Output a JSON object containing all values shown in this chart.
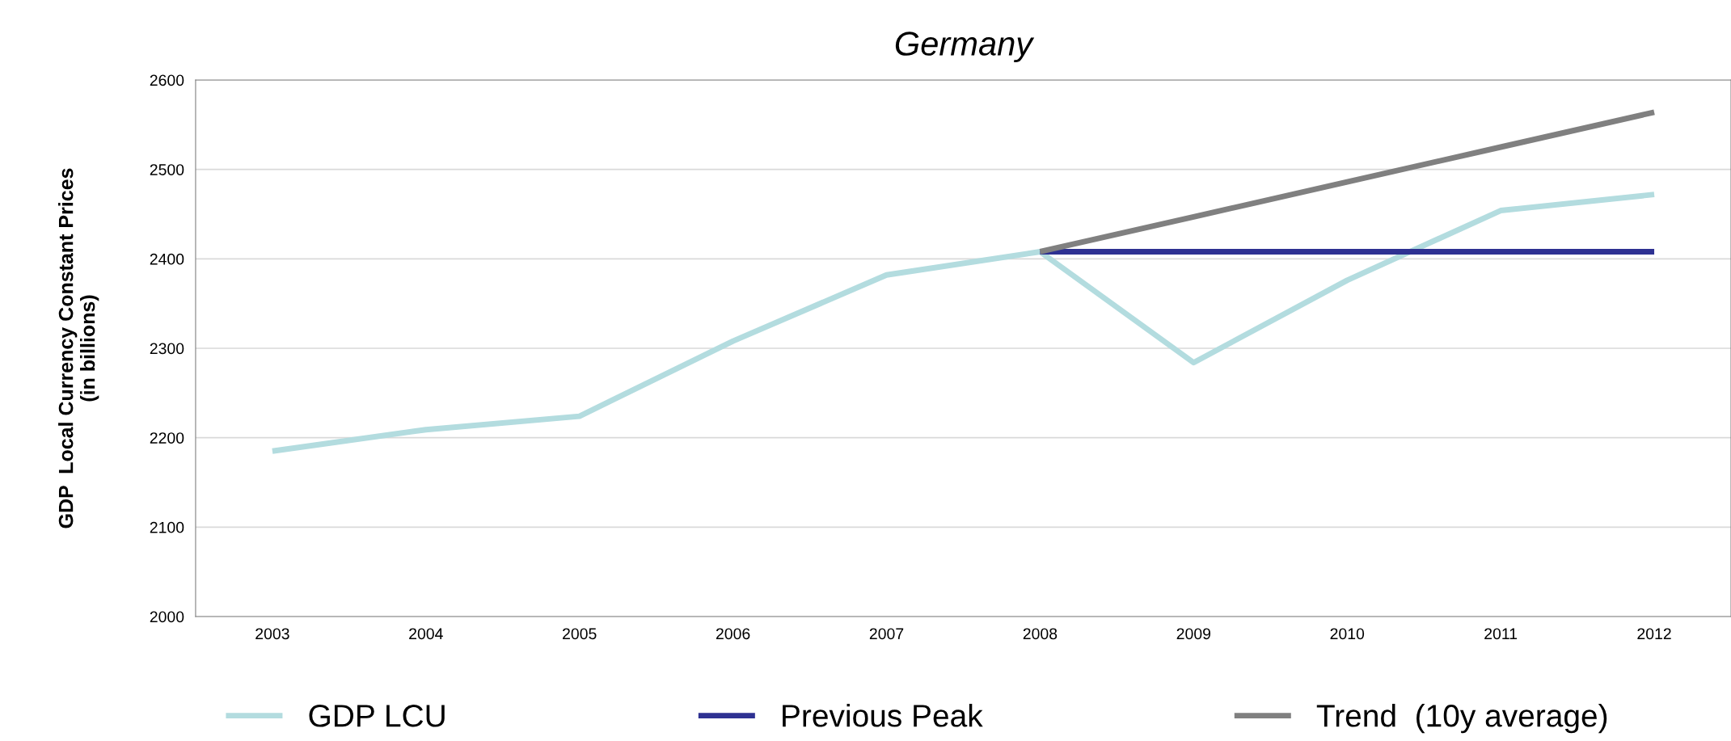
{
  "chart_data": {
    "type": "line",
    "title": "Germany",
    "ylabel": "GDP  Local Currency Constant Prices\n(in billions)",
    "categories": [
      "2003",
      "2004",
      "2005",
      "2006",
      "2007",
      "2008",
      "2009",
      "2010",
      "2011",
      "2012"
    ],
    "series": [
      {
        "name": "GDP LCU",
        "color": "#b3dcdf",
        "values": [
          2185,
          2209,
          2224,
          2308,
          2382,
          2408,
          2284,
          2376,
          2454,
          2472
        ]
      },
      {
        "name": "Previous Peak",
        "color": "#2e3192",
        "values": [
          null,
          null,
          null,
          null,
          null,
          2408,
          2408,
          2408,
          2408,
          2408
        ]
      },
      {
        "name": "Trend  (10y average)",
        "color": "#808080",
        "values": [
          null,
          null,
          null,
          null,
          null,
          2408,
          2447,
          2486,
          2525,
          2564
        ]
      }
    ],
    "ylim": [
      2000,
      2600
    ],
    "yticks": [
      2000,
      2100,
      2200,
      2300,
      2400,
      2500,
      2600
    ],
    "grid": "y",
    "legend": "bottom",
    "marker": "none",
    "line_style": "solid"
  }
}
